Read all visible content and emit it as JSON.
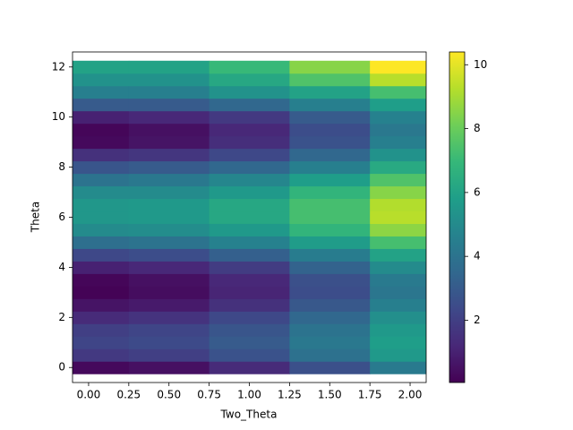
{
  "chart_data": {
    "type": "heatmap",
    "x_label": "Two_Theta",
    "y_label": "Theta",
    "x": [
      0,
      0.5,
      1.0,
      1.5,
      2.0
    ],
    "y": [
      0,
      0.5,
      1,
      1.5,
      2,
      2.5,
      3,
      3.5,
      4,
      4.5,
      5,
      5.5,
      6,
      6.5,
      7,
      7.5,
      8,
      8.5,
      9,
      9.5,
      10,
      10.5,
      11,
      11.5,
      12
    ],
    "z": [
      [
        0.3,
        0.5,
        1.3,
        2.6,
        4.3
      ],
      [
        1.8,
        2.0,
        2.7,
        3.9,
        5.6
      ],
      [
        2.2,
        2.4,
        3.0,
        4.2,
        5.8
      ],
      [
        2.0,
        2.2,
        2.8,
        4.0,
        5.6
      ],
      [
        1.3,
        1.6,
        2.3,
        3.5,
        5.2
      ],
      [
        0.6,
        0.8,
        1.5,
        2.9,
        4.5
      ],
      [
        0.1,
        0.4,
        1.1,
        2.5,
        4.1
      ],
      [
        0.2,
        0.5,
        1.2,
        2.6,
        4.3
      ],
      [
        1.0,
        1.2,
        1.9,
        3.3,
        5.0
      ],
      [
        2.3,
        2.5,
        3.2,
        4.4,
        6.0
      ],
      [
        3.8,
        4.0,
        4.6,
        5.7,
        7.3
      ],
      [
        5.0,
        5.1,
        5.6,
        6.8,
        8.6
      ],
      [
        5.5,
        5.6,
        6.2,
        7.3,
        9.3
      ],
      [
        5.5,
        5.6,
        6.2,
        7.3,
        9.2
      ],
      [
        5.0,
        5.0,
        5.6,
        6.8,
        8.5
      ],
      [
        4.0,
        4.2,
        4.8,
        5.8,
        7.5
      ],
      [
        2.8,
        3.0,
        3.5,
        4.5,
        6.3
      ],
      [
        1.5,
        1.7,
        2.3,
        3.5,
        5.3
      ],
      [
        0.3,
        0.6,
        1.4,
        2.7,
        4.5
      ],
      [
        0.2,
        0.5,
        1.2,
        2.5,
        4.2
      ],
      [
        1.0,
        1.2,
        1.8,
        3.0,
        4.6
      ],
      [
        3.0,
        3.0,
        3.5,
        4.5,
        5.8
      ],
      [
        4.5,
        4.5,
        5.3,
        6.0,
        7.3
      ],
      [
        5.3,
        5.3,
        6.2,
        7.5,
        9.3
      ],
      [
        6.0,
        6.0,
        7.0,
        8.5,
        10.4
      ]
    ],
    "xlim": [
      -0.1,
      2.1
    ],
    "ylim": [
      -0.6,
      12.6
    ],
    "xticks": [
      {
        "value": 0,
        "label": "0.00"
      },
      {
        "value": 0.25,
        "label": "0.25"
      },
      {
        "value": 0.5,
        "label": "0.50"
      },
      {
        "value": 0.75,
        "label": "0.75"
      },
      {
        "value": 1,
        "label": "1.00"
      },
      {
        "value": 1.25,
        "label": "1.25"
      },
      {
        "value": 1.5,
        "label": "1.50"
      },
      {
        "value": 1.75,
        "label": "1.75"
      },
      {
        "value": 2,
        "label": "2.00"
      }
    ],
    "yticks": [
      0,
      2,
      4,
      6,
      8,
      10,
      12
    ],
    "colormap": "viridis",
    "clim": [
      0.05,
      10.4
    ],
    "cticks": [
      2,
      4,
      6,
      8,
      10
    ]
  }
}
